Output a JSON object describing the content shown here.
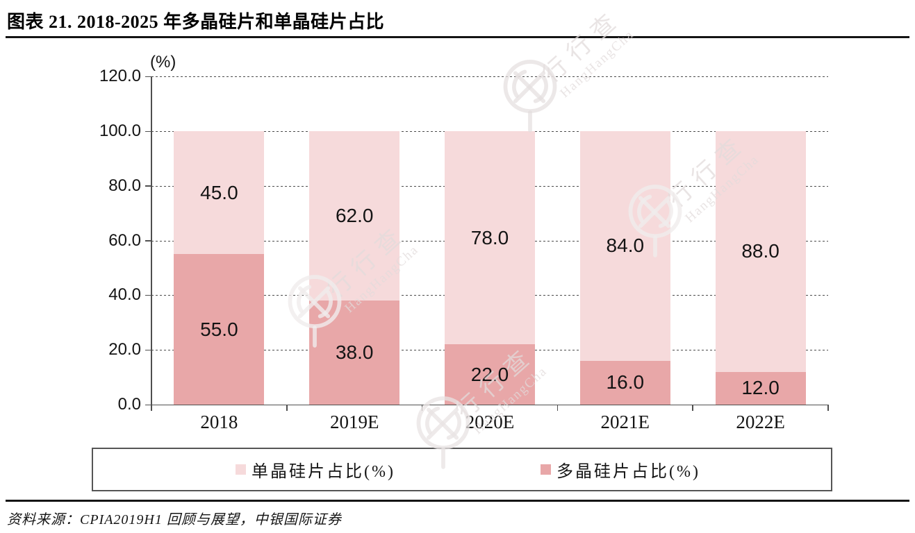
{
  "title": "图表 21. 2018-2025 年多晶硅片和单晶硅片占比",
  "source": "资料来源：CPIA2019H1 回顾与展望，中银国际证券",
  "watermark": {
    "cjk": "行行查",
    "latin": "HangHangCha"
  },
  "chart_data": {
    "type": "bar",
    "stacked": true,
    "title": "图表 21. 2018-2025 年多晶硅片和单晶硅片占比",
    "unit_label": "(%)",
    "categories": [
      "2018",
      "2019E",
      "2020E",
      "2021E",
      "2022E"
    ],
    "series": [
      {
        "name": "多晶硅片占比(%)",
        "color": "#E8A7A8",
        "values": [
          55.0,
          38.0,
          22.0,
          16.0,
          12.0
        ]
      },
      {
        "name": "单晶硅片占比(%)",
        "color": "#F6DADB",
        "values": [
          45.0,
          62.0,
          78.0,
          84.0,
          88.0
        ]
      }
    ],
    "legend_order": [
      1,
      0
    ],
    "legend_position": "bottom",
    "ylim": [
      0,
      120
    ],
    "ytick_step": 20,
    "ytick_format_decimals": 1,
    "grid": "dashed-horizontal",
    "value_labels": "segment-center",
    "colors": {
      "axis": "#4f4f4f",
      "label": "#141414"
    }
  }
}
